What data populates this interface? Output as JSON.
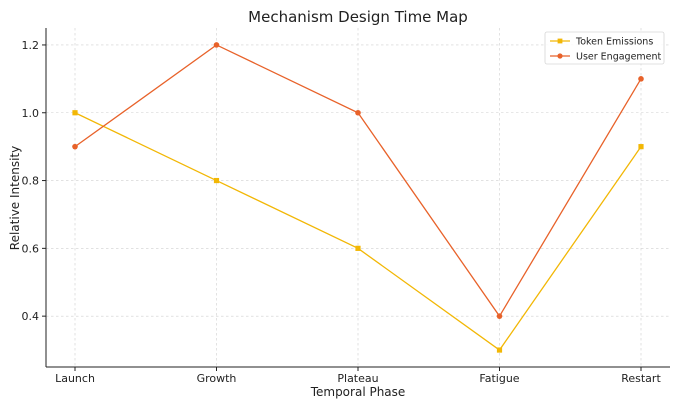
{
  "chart_data": {
    "type": "line",
    "title": "Mechanism Design Time Map",
    "xlabel": "Temporal Phase",
    "ylabel": "Relative Intensity",
    "categories": [
      "Launch",
      "Growth",
      "Plateau",
      "Fatigue",
      "Restart"
    ],
    "ylim": [
      0.25,
      1.25
    ],
    "yticks": [
      0.4,
      0.6,
      0.8,
      1.0,
      1.2
    ],
    "ytick_labels": [
      "0.4",
      "0.6",
      "0.8",
      "1.0",
      "1.2"
    ],
    "grid": true,
    "legend_position": "top-right",
    "series": [
      {
        "name": "Token Emissions",
        "values": [
          1.0,
          0.8,
          0.6,
          0.3,
          0.9
        ],
        "color": "#f2b705",
        "marker": "square"
      },
      {
        "name": "User Engagement",
        "values": [
          0.9,
          1.2,
          1.0,
          0.4,
          1.1
        ],
        "color": "#e8622a",
        "marker": "circle"
      }
    ]
  }
}
